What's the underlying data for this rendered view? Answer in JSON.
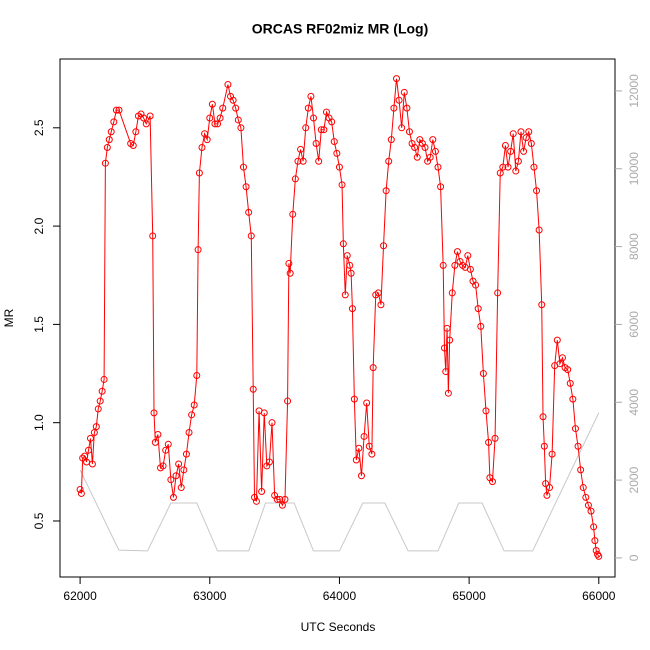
{
  "chart_data": {
    "type": "line",
    "title": "ORCAS RF02miz MR (Log)",
    "x_label": "UTC Seconds",
    "y_label": "MR",
    "xlim": [
      61845,
      66125
    ],
    "xticks": [
      62000,
      63000,
      64000,
      65000,
      66000
    ],
    "ylim": [
      0.215,
      2.85
    ],
    "yticks": [
      0.5,
      {
        "value": 1.0,
        "label": "1.0"
      },
      1.5,
      {
        "value": 2.0,
        "label": "2.0"
      },
      2.5
    ],
    "y2lim": [
      -490,
      12820
    ],
    "y2ticks": [
      0,
      2000,
      4000,
      6000,
      8000,
      10000,
      12000
    ],
    "series": [
      {
        "color": "#ff0000",
        "markers": true,
        "x": [
          62000,
          62010,
          62020,
          62035,
          62050,
          62065,
          62080,
          62095,
          62110,
          62125,
          62140,
          62155,
          62170,
          62185,
          62195,
          62210,
          62225,
          62240,
          62260,
          62280,
          62300,
          62390,
          62410,
          62430,
          62450,
          62470,
          62490,
          62510,
          62540,
          62560,
          62570,
          62580,
          62600,
          62620,
          62640,
          62660,
          62680,
          62700,
          62720,
          62740,
          62760,
          62780,
          62800,
          62820,
          62840,
          62860,
          62880,
          62900,
          62910,
          62920,
          62940,
          62960,
          62980,
          63000,
          63020,
          63040,
          63060,
          63080,
          63100,
          63140,
          63160,
          63180,
          63200,
          63220,
          63240,
          63260,
          63280,
          63300,
          63320,
          63335,
          63345,
          63360,
          63380,
          63400,
          63420,
          63440,
          63460,
          63480,
          63500,
          63520,
          63540,
          63560,
          63580,
          63600,
          63610,
          63620,
          63640,
          63660,
          63680,
          63700,
          63720,
          63740,
          63760,
          63780,
          63800,
          63820,
          63840,
          63860,
          63880,
          63900,
          63920,
          63940,
          63960,
          63980,
          64000,
          64020,
          64030,
          64045,
          64060,
          64080,
          64090,
          64100,
          64115,
          64130,
          64150,
          64170,
          64190,
          64210,
          64230,
          64250,
          64260,
          64280,
          64300,
          64320,
          64340,
          64360,
          64380,
          64400,
          64420,
          64440,
          64460,
          64480,
          64500,
          64520,
          64540,
          64560,
          64580,
          64600,
          64620,
          64640,
          64660,
          64680,
          64700,
          64720,
          64740,
          64760,
          64780,
          64800,
          64810,
          64820,
          64830,
          64840,
          64850,
          64870,
          64890,
          64910,
          64930,
          64950,
          64970,
          64990,
          65010,
          65030,
          65050,
          65070,
          65090,
          65110,
          65130,
          65150,
          65160,
          65180,
          65200,
          65220,
          65240,
          65260,
          65280,
          65300,
          65320,
          65340,
          65360,
          65380,
          65400,
          65420,
          65440,
          65460,
          65480,
          65500,
          65520,
          65540,
          65560,
          65570,
          65580,
          65590,
          65600,
          65620,
          65640,
          65660,
          65680,
          65700,
          65720,
          65740,
          65760,
          65780,
          65800,
          65820,
          65840,
          65860,
          65880,
          65900,
          65920,
          65940,
          65960,
          65970,
          65980,
          65990,
          66000
        ],
        "values": [
          0.66,
          0.64,
          0.82,
          0.83,
          0.8,
          0.86,
          0.92,
          0.79,
          0.95,
          0.98,
          1.07,
          1.11,
          1.16,
          1.22,
          2.32,
          2.4,
          2.44,
          2.48,
          2.53,
          2.59,
          2.59,
          2.42,
          2.41,
          2.48,
          2.56,
          2.57,
          2.55,
          2.52,
          2.56,
          1.95,
          1.05,
          0.9,
          0.94,
          0.77,
          0.78,
          0.86,
          0.89,
          0.71,
          0.62,
          0.73,
          0.79,
          0.67,
          0.76,
          0.84,
          0.95,
          1.04,
          1.09,
          1.24,
          1.88,
          2.27,
          2.4,
          2.47,
          2.44,
          2.55,
          2.62,
          2.52,
          2.52,
          2.55,
          2.6,
          2.72,
          2.66,
          2.64,
          2.6,
          2.54,
          2.5,
          2.3,
          2.2,
          2.07,
          1.95,
          1.17,
          0.62,
          0.6,
          1.06,
          0.65,
          1.05,
          0.78,
          0.8,
          1.0,
          0.63,
          0.61,
          0.61,
          0.58,
          0.61,
          1.11,
          1.81,
          1.76,
          2.06,
          2.24,
          2.33,
          2.39,
          2.33,
          2.5,
          2.6,
          2.66,
          2.55,
          2.42,
          2.33,
          2.49,
          2.49,
          2.58,
          2.55,
          2.53,
          2.43,
          2.37,
          2.3,
          2.21,
          1.91,
          1.65,
          1.85,
          1.8,
          1.76,
          1.58,
          1.12,
          0.81,
          0.87,
          0.73,
          0.93,
          1.1,
          0.88,
          0.84,
          1.28,
          1.65,
          1.66,
          1.6,
          1.9,
          2.18,
          2.33,
          2.44,
          2.6,
          2.75,
          2.64,
          2.5,
          2.68,
          2.6,
          2.48,
          2.42,
          2.4,
          2.35,
          2.44,
          2.42,
          2.4,
          2.33,
          2.35,
          2.44,
          2.38,
          2.3,
          2.2,
          1.8,
          1.38,
          1.26,
          1.48,
          1.15,
          1.42,
          1.66,
          1.8,
          1.87,
          1.82,
          1.8,
          1.79,
          1.85,
          1.78,
          1.72,
          1.7,
          1.58,
          1.49,
          1.25,
          1.06,
          0.9,
          0.72,
          0.7,
          0.92,
          1.66,
          2.27,
          2.3,
          2.41,
          2.3,
          2.38,
          2.47,
          2.28,
          2.33,
          2.48,
          2.38,
          2.45,
          2.48,
          2.42,
          2.3,
          2.18,
          1.98,
          1.6,
          1.03,
          0.88,
          0.69,
          0.63,
          0.67,
          0.84,
          1.29,
          1.42,
          1.3,
          1.33,
          1.28,
          1.27,
          1.2,
          1.12,
          0.97,
          0.88,
          0.76,
          0.67,
          0.62,
          0.58,
          0.55,
          0.47,
          0.4,
          0.35,
          0.33,
          0.32
        ]
      },
      {
        "color": "#c8c8c8",
        "axis": "y2",
        "markers": false,
        "x": [
          62000,
          62280,
          62300,
          62520,
          62700,
          62900,
          63060,
          63300,
          63430,
          63650,
          63800,
          64000,
          64180,
          64350,
          64530,
          64760,
          64920,
          65100,
          65270,
          65490,
          66000
        ],
        "values": [
          2260,
          330,
          200,
          180,
          1410,
          1410,
          180,
          180,
          1410,
          1410,
          180,
          180,
          1410,
          1410,
          180,
          180,
          1410,
          1410,
          180,
          180,
          3730
        ]
      }
    ]
  }
}
